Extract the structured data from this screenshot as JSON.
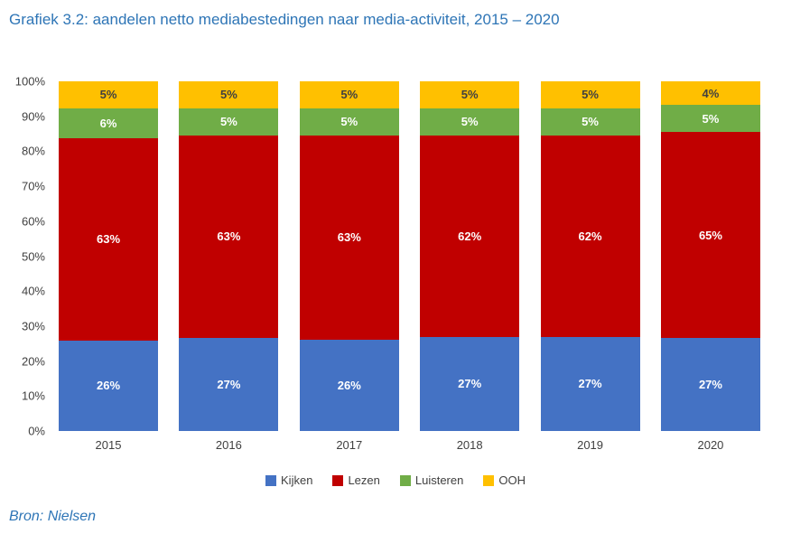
{
  "title": "Grafiek 3.2: aandelen netto mediabestedingen naar media-activiteit, 2015 – 2020",
  "source": "Bron: Nielsen",
  "colors": {
    "title_text": "#2E75B6",
    "source_text": "#2E75B6",
    "axis_text": "#404040",
    "legend_text": "#404040"
  },
  "chart_data": {
    "type": "bar",
    "stacked": true,
    "percent_stacked": true,
    "title": "Grafiek 3.2: aandelen netto mediabestedingen naar media-activiteit, 2015 – 2020",
    "categories": [
      "2015",
      "2016",
      "2017",
      "2018",
      "2019",
      "2020"
    ],
    "series": [
      {
        "name": "Kijken",
        "color": "#4472C4",
        "label_color": "#FFFFFF",
        "values": [
          26,
          27,
          26,
          27,
          27,
          27
        ]
      },
      {
        "name": "Lezen",
        "color": "#C00000",
        "label_color": "#FFFFFF",
        "values": [
          63,
          63,
          63,
          62,
          62,
          65
        ]
      },
      {
        "name": "Luisteren",
        "color": "#70AD47",
        "label_color": "#FFFFFF",
        "values": [
          6,
          5,
          5,
          5,
          5,
          5
        ]
      },
      {
        "name": "OOH",
        "color": "#FFC000",
        "label_color": "#404040",
        "values": [
          5,
          5,
          5,
          5,
          5,
          4
        ]
      }
    ],
    "data_label_suffix": "%",
    "y_ticks": [
      "100%",
      "90%",
      "80%",
      "70%",
      "60%",
      "50%",
      "40%",
      "30%",
      "20%",
      "10%",
      "0%"
    ],
    "ylim": [
      0,
      100
    ],
    "grid": false,
    "legend_position": "bottom",
    "xlabel": "",
    "ylabel": ""
  }
}
